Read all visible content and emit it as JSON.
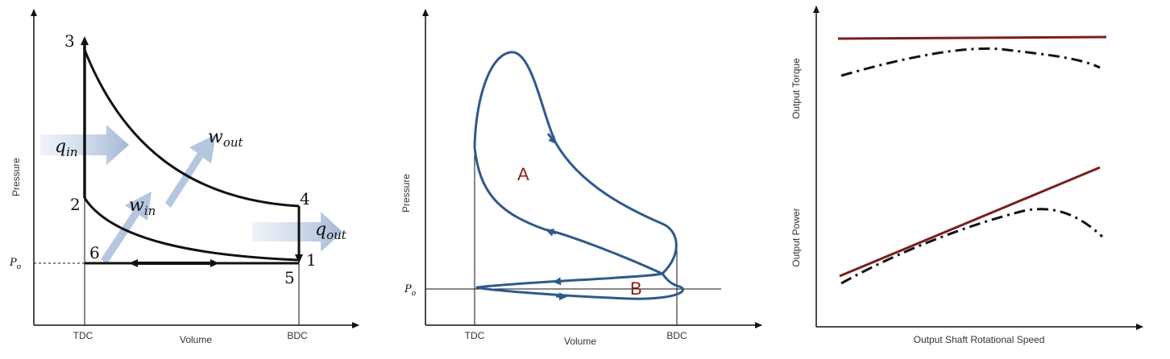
{
  "panel1": {
    "ylabel": "Pressure",
    "xlabel": "Volume",
    "tick_tdc": "TDC",
    "tick_bdc": "BDC",
    "p0_label": "P",
    "p0_sub": "o",
    "points": [
      "1",
      "2",
      "3",
      "4",
      "5",
      "6"
    ],
    "q_in": {
      "base": "q",
      "sub": "in"
    },
    "w_out": {
      "base": "w",
      "sub": "out"
    },
    "w_in": {
      "base": "w",
      "sub": "in"
    },
    "q_out": {
      "base": "q",
      "sub": "out"
    }
  },
  "panel2": {
    "ylabel": "Pressure",
    "xlabel": "Volume",
    "tick_tdc": "TDC",
    "tick_bdc": "BDC",
    "p0_label": "P",
    "p0_sub": "o",
    "region_a": "A",
    "region_b": "B",
    "loop_color": "#2d5a8c"
  },
  "panel3": {
    "xlabel": "Output Shaft Rotational Speed",
    "ylabel_top": "Output Torque",
    "ylabel_bottom": "Output Power",
    "solid_color": "#7a1e1e",
    "dash_color": "#111111"
  }
}
